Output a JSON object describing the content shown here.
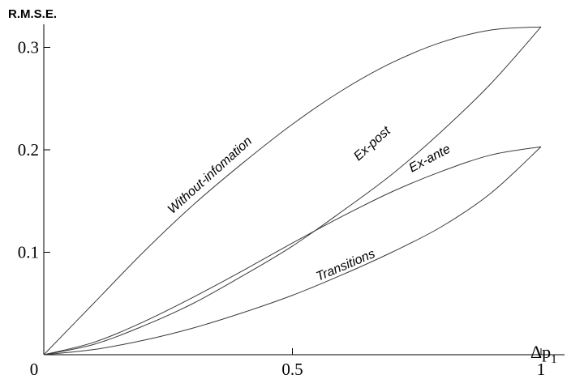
{
  "chart_data": {
    "type": "line",
    "title": "",
    "ylabel": "R.M.S.E.",
    "xlabel_main": "Δp",
    "xlabel_sub": "1",
    "xlim": [
      0,
      1
    ],
    "ylim": [
      0,
      0.32
    ],
    "xticks": [
      {
        "value": 0,
        "label": "0"
      },
      {
        "value": 0.5,
        "label": "0.5"
      },
      {
        "value": 1,
        "label": "1"
      }
    ],
    "yticks": [
      {
        "value": 0.1,
        "label": "0.1"
      },
      {
        "value": 0.2,
        "label": "0.2"
      },
      {
        "value": 0.3,
        "label": "0.3"
      }
    ],
    "series": [
      {
        "name": "Without-infomation",
        "x": [
          0,
          0.1,
          0.2,
          0.3,
          0.4,
          0.5,
          0.6,
          0.7,
          0.8,
          0.9,
          1.0
        ],
        "y": [
          0,
          0.05,
          0.1,
          0.146,
          0.187,
          0.225,
          0.258,
          0.285,
          0.305,
          0.317,
          0.32
        ]
      },
      {
        "name": "Ex-post",
        "x": [
          0,
          0.1,
          0.2,
          0.3,
          0.4,
          0.5,
          0.6,
          0.7,
          0.8,
          0.9,
          1.0
        ],
        "y": [
          0,
          0.01,
          0.028,
          0.05,
          0.077,
          0.106,
          0.14,
          0.176,
          0.218,
          0.265,
          0.32
        ]
      },
      {
        "name": "Ex-ante",
        "x": [
          0,
          0.1,
          0.2,
          0.3,
          0.4,
          0.5,
          0.6,
          0.7,
          0.8,
          0.9,
          1.0
        ],
        "y": [
          0,
          0.012,
          0.032,
          0.056,
          0.082,
          0.109,
          0.135,
          0.159,
          0.179,
          0.195,
          0.203
        ]
      },
      {
        "name": "Transitions",
        "x": [
          0,
          0.1,
          0.2,
          0.3,
          0.4,
          0.5,
          0.6,
          0.7,
          0.8,
          0.9,
          1.0
        ],
        "y": [
          0,
          0.005,
          0.014,
          0.026,
          0.041,
          0.058,
          0.078,
          0.1,
          0.125,
          0.158,
          0.203
        ]
      }
    ],
    "curve_labels": [
      {
        "series": "Without-infomation",
        "text": "Without-infomation"
      },
      {
        "series": "Ex-post",
        "text": "Ex-post"
      },
      {
        "series": "Ex-ante",
        "text": "Ex-ante"
      },
      {
        "series": "Transitions",
        "text": "Transitions"
      }
    ],
    "grid": false,
    "legend": "none"
  }
}
